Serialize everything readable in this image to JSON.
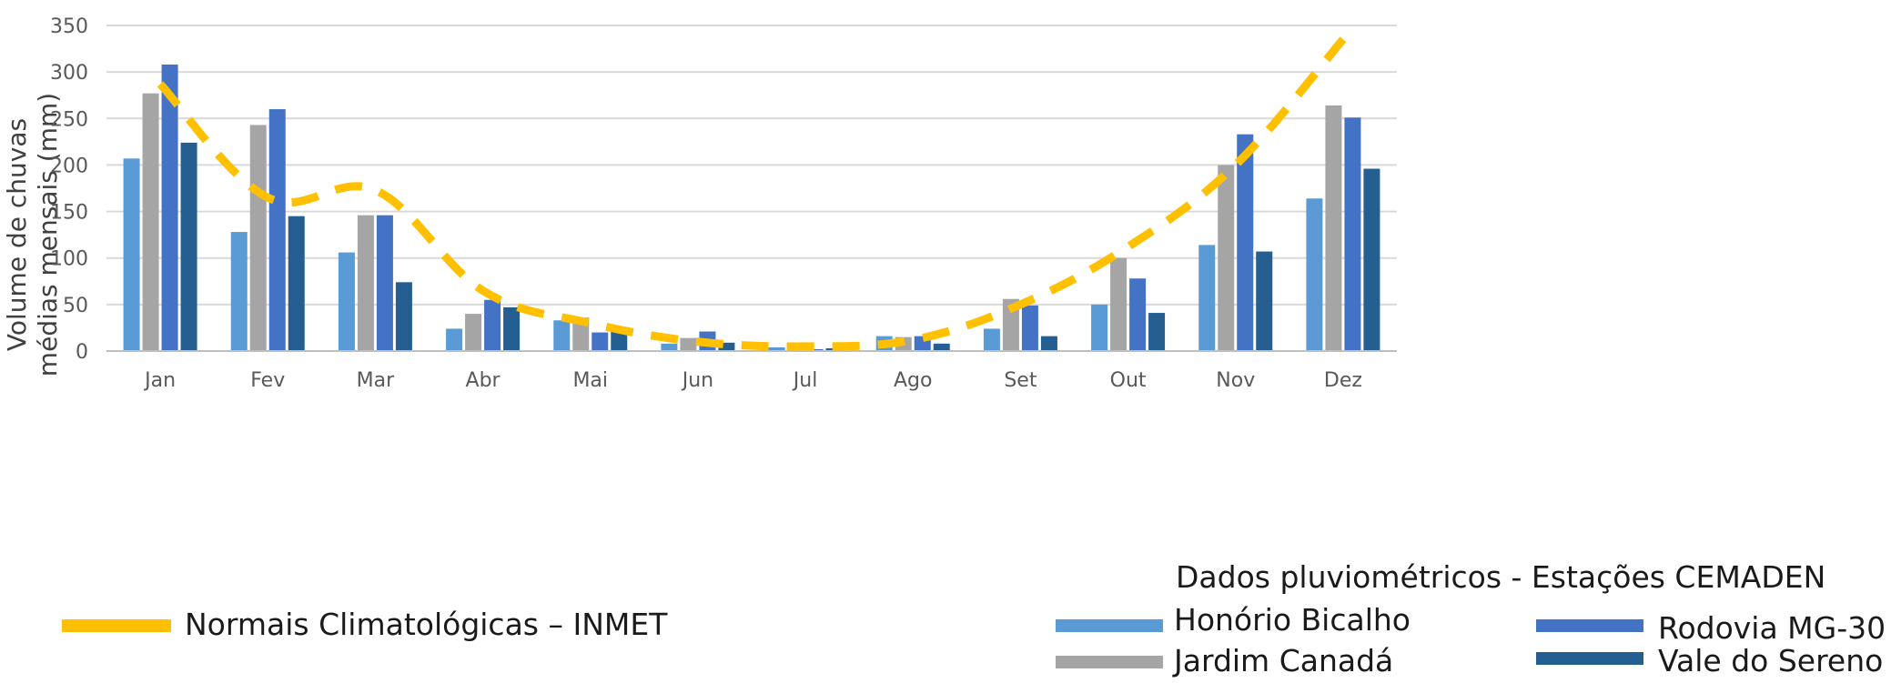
{
  "chart_data": {
    "type": "bar",
    "ylabel_line1": "Volume de chuvas",
    "ylabel_line2": "médias mensais (mm)",
    "ylim": [
      0,
      350
    ],
    "yticks": [
      0,
      50,
      100,
      150,
      200,
      250,
      300,
      350
    ],
    "grid": true,
    "categories": [
      "Jan",
      "Fev",
      "Mar",
      "Abr",
      "Mai",
      "Jun",
      "Jul",
      "Ago",
      "Set",
      "Out",
      "Nov",
      "Dez"
    ],
    "series": [
      {
        "name": "Honório Bicalho",
        "color": "#5b9bd5",
        "values": [
          207,
          128,
          106,
          24,
          33,
          8,
          4,
          16,
          24,
          50,
          114,
          164
        ]
      },
      {
        "name": "Jardim Canadá",
        "color": "#a5a5a5",
        "values": [
          277,
          243,
          146,
          40,
          36,
          14,
          1,
          15,
          56,
          100,
          200,
          264
        ]
      },
      {
        "name": "Rodovia MG-30",
        "color": "#4472c4",
        "values": [
          308,
          260,
          146,
          55,
          20,
          21,
          2,
          16,
          49,
          78,
          233,
          251
        ]
      },
      {
        "name": "Vale do Sereno",
        "color": "#255e91",
        "values": [
          224,
          145,
          74,
          47,
          24,
          9,
          3,
          8,
          16,
          41,
          107,
          196
        ]
      }
    ],
    "line": {
      "name": "Normais Climatológicas – INMET",
      "color": "#ffc000",
      "style": "dashed",
      "values": [
        287,
        165,
        173,
        65,
        30,
        10,
        5,
        12,
        50,
        112,
        200,
        335
      ]
    },
    "legend": {
      "group_title": "Dados pluviométricos - Estações CEMADEN",
      "placement": "bottom"
    }
  }
}
